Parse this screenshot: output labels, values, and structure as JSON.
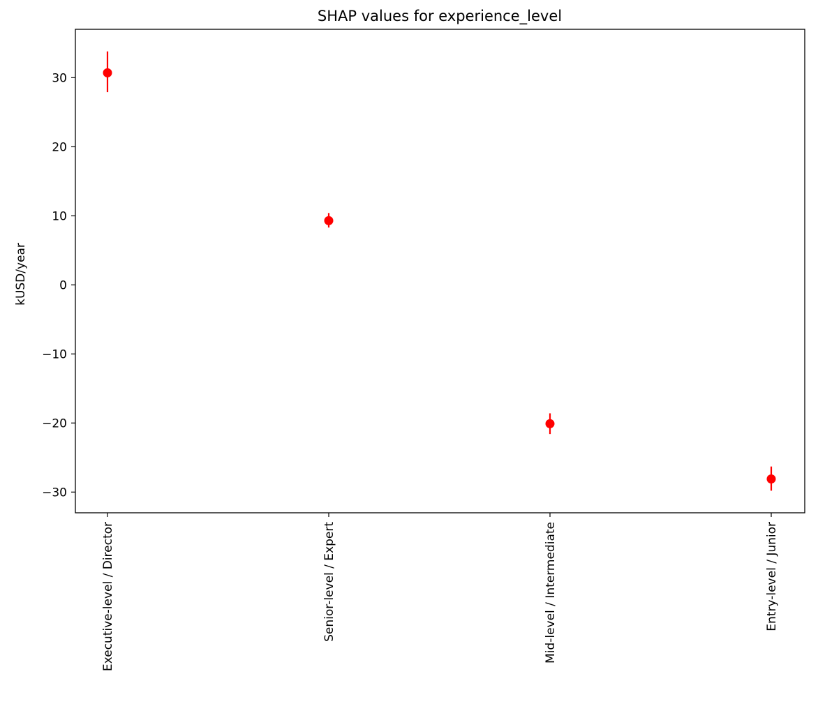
{
  "chart_data": {
    "type": "scatter",
    "title": "SHAP values for experience_level",
    "xlabel": "",
    "ylabel": "kUSD/year",
    "categories": [
      "Executive-level / Director",
      "Senior-level / Expert",
      "Mid-level / Intermediate",
      "Entry-level / Junior"
    ],
    "values": [
      30.7,
      9.3,
      -20.1,
      -28.1
    ],
    "error_low": [
      27.9,
      8.3,
      -21.6,
      -29.8
    ],
    "error_high": [
      33.8,
      10.4,
      -18.6,
      -26.3
    ],
    "ylim": [
      -33,
      37
    ],
    "yticks": [
      -30,
      -20,
      -10,
      0,
      10,
      20,
      30
    ],
    "color": "#ff0000",
    "grid": false,
    "legend": "none"
  }
}
